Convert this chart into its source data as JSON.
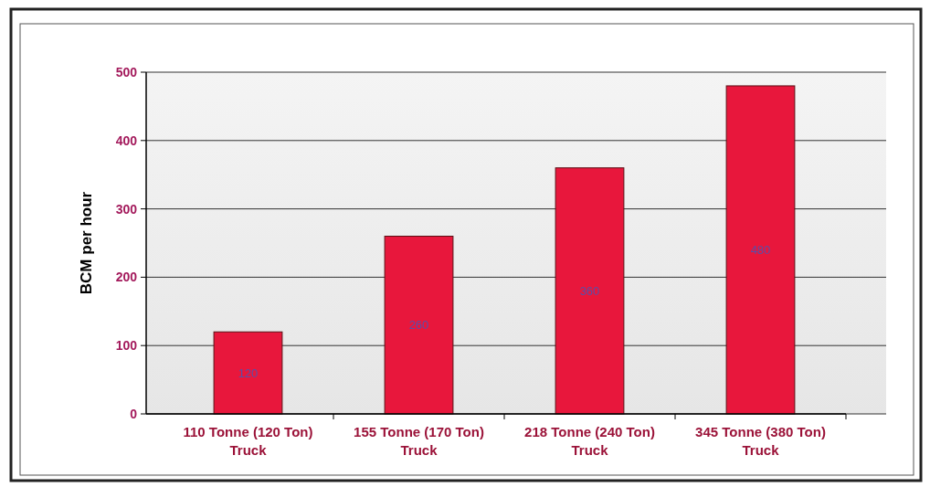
{
  "chart_data": {
    "type": "bar",
    "ylabel": "BCM per hour",
    "categories": [
      "110 Tonne (120 Ton) Truck",
      "155 Tonne (170 Ton) Truck",
      "218 Tonne (240 Ton) Truck",
      "345 Tonne (380 Ton) Truck"
    ],
    "values": [
      120,
      260,
      360,
      480
    ],
    "color": "#e8173c",
    "ylim": [
      0,
      500
    ],
    "yticks": [
      0,
      100,
      200,
      300,
      400,
      500
    ],
    "grid": "y",
    "data_labels": true
  }
}
